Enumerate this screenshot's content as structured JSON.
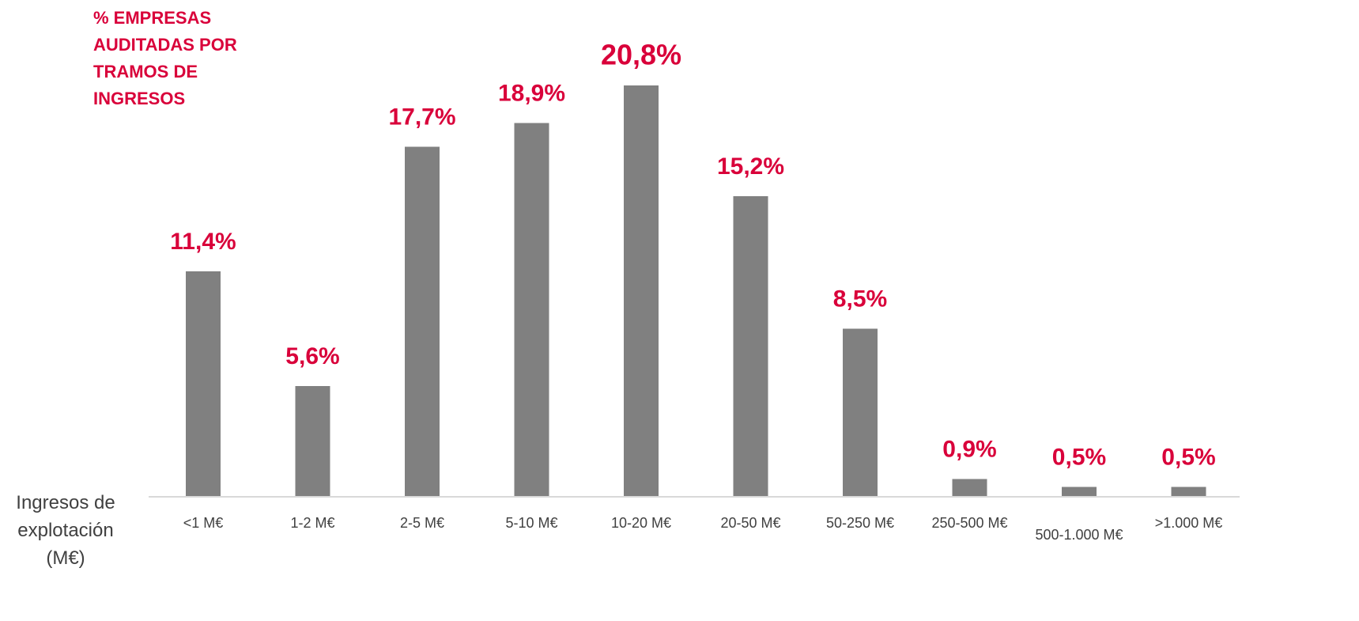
{
  "chart_data": {
    "type": "bar",
    "title": "% EMPRESAS AUDITADAS POR TRAMOS DE INGRESOS",
    "x_label": "Ingresos de explotación (M€)",
    "categories": [
      "<1 M€",
      "1-2 M€",
      "2-5 M€",
      "5-10 M€",
      "10-20 M€",
      "20-50 M€",
      "50-250 M€",
      "250-500 M€",
      "500-1.000 M€",
      ">1.000 M€"
    ],
    "values": [
      11.4,
      5.6,
      17.7,
      18.9,
      20.8,
      15.2,
      8.5,
      0.9,
      0.5,
      0.5
    ],
    "value_labels": [
      "11,4%",
      "5,6%",
      "17,7%",
      "18,9%",
      "20,8%",
      "15,2%",
      "8,5%",
      "0,9%",
      "0,5%",
      "0,5%"
    ],
    "color": "#808080",
    "label_color": "#d9003a"
  }
}
